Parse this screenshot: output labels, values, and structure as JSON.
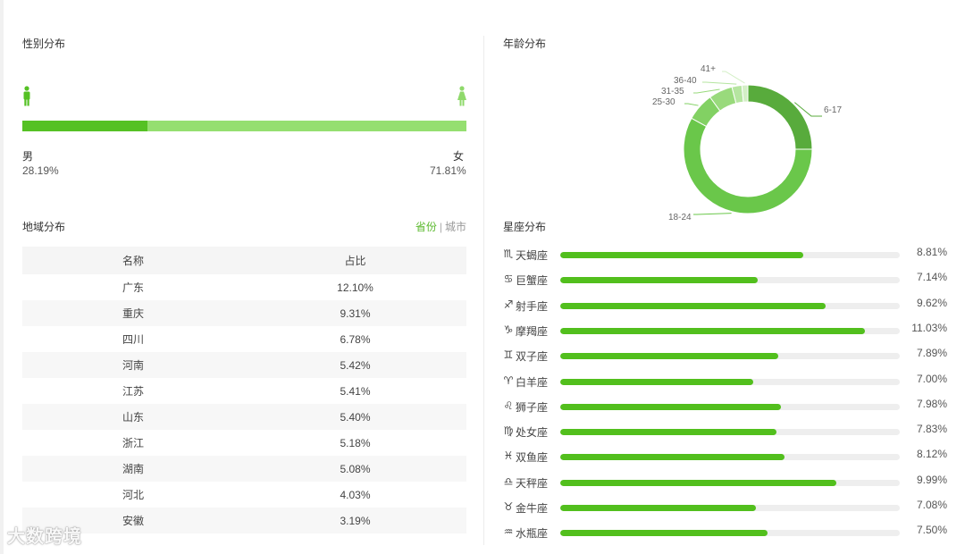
{
  "gender": {
    "title": "性别分布",
    "male_label": "男",
    "female_label": "女",
    "male_pct": "28.19%",
    "female_pct": "71.81%",
    "male_fraction": 0.2819,
    "male_color": "#55c124",
    "female_color": "#95df70"
  },
  "region": {
    "title": "地域分布",
    "toggle_active": "省份",
    "toggle_sep": "|",
    "toggle_other": "城市",
    "col_name": "名称",
    "col_pct": "占比",
    "rows": [
      {
        "name": "广东",
        "pct": "12.10%"
      },
      {
        "name": "重庆",
        "pct": "9.31%"
      },
      {
        "name": "四川",
        "pct": "6.78%"
      },
      {
        "name": "河南",
        "pct": "5.42%"
      },
      {
        "name": "江苏",
        "pct": "5.41%"
      },
      {
        "name": "山东",
        "pct": "5.40%"
      },
      {
        "name": "浙江",
        "pct": "5.18%"
      },
      {
        "name": "湖南",
        "pct": "5.08%"
      },
      {
        "name": "河北",
        "pct": "4.03%"
      },
      {
        "name": "安徽",
        "pct": "3.19%"
      }
    ]
  },
  "age": {
    "title": "年龄分布",
    "segments": [
      {
        "label": "6-17",
        "value": 25,
        "color": "#58ab3c"
      },
      {
        "label": "18-24",
        "value": 58,
        "color": "#6ac74a"
      },
      {
        "label": "25-30",
        "value": 7,
        "color": "#82d163"
      },
      {
        "label": "31-35",
        "value": 6,
        "color": "#99da7c"
      },
      {
        "label": "36-40",
        "value": 2.5,
        "color": "#b5e5a0"
      },
      {
        "label": "41+",
        "value": 1.5,
        "color": "#d3efc5"
      }
    ]
  },
  "constellation": {
    "title": "星座分布",
    "items": [
      {
        "icon": "scorpio-icon",
        "glyph": "♏",
        "name": "天蝎座",
        "pct": "8.81%",
        "value": 8.81
      },
      {
        "icon": "cancer-icon",
        "glyph": "♋",
        "name": "巨蟹座",
        "pct": "7.14%",
        "value": 7.14
      },
      {
        "icon": "sagittarius-icon",
        "glyph": "♐",
        "name": "射手座",
        "pct": "9.62%",
        "value": 9.62
      },
      {
        "icon": "capricorn-icon",
        "glyph": "♑",
        "name": "摩羯座",
        "pct": "11.03%",
        "value": 11.03
      },
      {
        "icon": "gemini-icon",
        "glyph": "♊",
        "name": "双子座",
        "pct": "7.89%",
        "value": 7.89
      },
      {
        "icon": "aries-icon",
        "glyph": "♈",
        "name": "白羊座",
        "pct": "7.00%",
        "value": 7.0
      },
      {
        "icon": "leo-icon",
        "glyph": "♌",
        "name": "狮子座",
        "pct": "7.98%",
        "value": 7.98
      },
      {
        "icon": "virgo-icon",
        "glyph": "♍",
        "name": "处女座",
        "pct": "7.83%",
        "value": 7.83
      },
      {
        "icon": "pisces-icon",
        "glyph": "♓",
        "name": "双鱼座",
        "pct": "8.12%",
        "value": 8.12
      },
      {
        "icon": "libra-icon",
        "glyph": "♎",
        "name": "天秤座",
        "pct": "9.99%",
        "value": 9.99
      },
      {
        "icon": "taurus-icon",
        "glyph": "♉",
        "name": "金牛座",
        "pct": "7.08%",
        "value": 7.08
      },
      {
        "icon": "aquarius-icon",
        "glyph": "♒",
        "name": "水瓶座",
        "pct": "7.50%",
        "value": 7.5
      }
    ],
    "bar_color": "#52bf1d",
    "track_color": "#eeeeee"
  },
  "watermark": "大数跨境"
}
